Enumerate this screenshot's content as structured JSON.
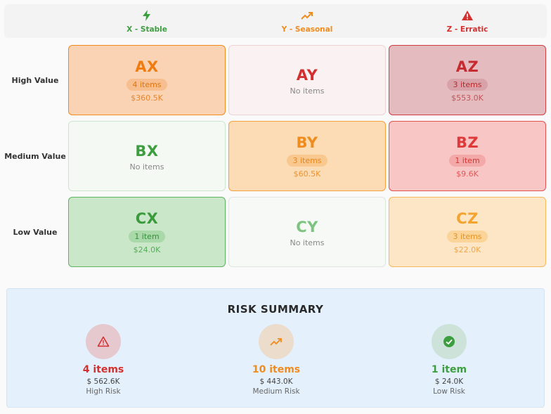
{
  "columns": [
    {
      "label": "X - Stable",
      "icon": "lightning-bolt-icon",
      "color": "#3d9e3f"
    },
    {
      "label": "Y - Seasonal",
      "icon": "trending-up-icon",
      "color": "#f08c1e"
    },
    {
      "label": "Z - Erratic",
      "icon": "warning-icon",
      "color": "#d43030"
    }
  ],
  "rows": [
    {
      "label": "High Value"
    },
    {
      "label": "Medium Value"
    },
    {
      "label": "Low Value"
    }
  ],
  "cells": {
    "AX": {
      "code": "AX",
      "badge": "4 items",
      "value": "$360.5K"
    },
    "AY": {
      "code": "AY",
      "empty": "No items"
    },
    "AZ": {
      "code": "AZ",
      "badge": "3 items",
      "value": "$553.0K"
    },
    "BX": {
      "code": "BX",
      "empty": "No items"
    },
    "BY": {
      "code": "BY",
      "badge": "3 items",
      "value": "$60.5K"
    },
    "BZ": {
      "code": "BZ",
      "badge": "1 item",
      "value": "$9.6K"
    },
    "CX": {
      "code": "CX",
      "badge": "1 item",
      "value": "$24.0K"
    },
    "CY": {
      "code": "CY",
      "empty": "No items"
    },
    "CZ": {
      "code": "CZ",
      "badge": "3 items",
      "value": "$22.0K"
    }
  },
  "summary": {
    "title": "RISK SUMMARY",
    "high": {
      "count": "4 items",
      "amount": "$ 562.6K",
      "label": "High Risk",
      "icon": "warning-icon",
      "color": "#d43030"
    },
    "medium": {
      "count": "10 items",
      "amount": "$ 443.0K",
      "label": "Medium Risk",
      "icon": "trending-up-icon",
      "color": "#f08c1e"
    },
    "low": {
      "count": "1 item",
      "amount": "$ 24.0K",
      "label": "Low Risk",
      "icon": "check-circle-icon",
      "color": "#3d9e3f"
    }
  }
}
